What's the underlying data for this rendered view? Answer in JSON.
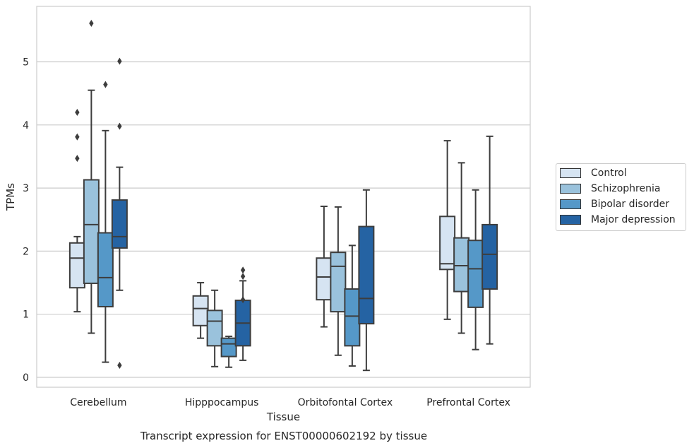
{
  "chart_data": {
    "type": "box",
    "title": "Transcript expression for ENST00000602192 by tissue",
    "xlabel": "Tissue",
    "ylabel": "TPMs",
    "ylim": [
      -0.15,
      5.85
    ],
    "yticks": [
      0,
      1,
      2,
      3,
      4,
      5
    ],
    "grid": "horizontal",
    "legend_position": "right",
    "categories": [
      "Cerebellum",
      "Hipppocampus",
      "Orbitofontal Cortex",
      "Prefrontal Cortex"
    ],
    "series": [
      {
        "name": "Control",
        "color": "#d6e4f2",
        "boxes": [
          {
            "whislo": 1.04,
            "q1": 1.42,
            "med": 1.89,
            "q3": 2.13,
            "whishi": 2.23,
            "fliers": [
              3.47,
              3.81,
              4.2
            ]
          },
          {
            "whislo": 0.62,
            "q1": 0.82,
            "med": 1.09,
            "q3": 1.29,
            "whishi": 1.5,
            "fliers": []
          },
          {
            "whislo": 0.8,
            "q1": 1.23,
            "med": 1.59,
            "q3": 1.89,
            "whishi": 2.71,
            "fliers": []
          },
          {
            "whislo": 0.92,
            "q1": 1.71,
            "med": 1.8,
            "q3": 2.55,
            "whishi": 3.75,
            "fliers": []
          }
        ]
      },
      {
        "name": "Schizophrenia",
        "color": "#9ac2dc",
        "boxes": [
          {
            "whislo": 0.7,
            "q1": 1.49,
            "med": 2.42,
            "q3": 3.13,
            "whishi": 4.55,
            "fliers": [
              5.61
            ]
          },
          {
            "whislo": 0.17,
            "q1": 0.5,
            "med": 0.89,
            "q3": 1.06,
            "whishi": 1.38,
            "fliers": []
          },
          {
            "whislo": 0.35,
            "q1": 1.04,
            "med": 1.76,
            "q3": 1.98,
            "whishi": 2.7,
            "fliers": []
          },
          {
            "whislo": 0.7,
            "q1": 1.36,
            "med": 1.77,
            "q3": 2.21,
            "whishi": 3.4,
            "fliers": []
          }
        ]
      },
      {
        "name": "Bipolar disorder",
        "color": "#5598c8",
        "boxes": [
          {
            "whislo": 0.24,
            "q1": 1.12,
            "med": 1.58,
            "q3": 2.29,
            "whishi": 3.91,
            "fliers": [
              4.64
            ]
          },
          {
            "whislo": 0.16,
            "q1": 0.33,
            "med": 0.53,
            "q3": 0.62,
            "whishi": 0.65,
            "fliers": []
          },
          {
            "whislo": 0.18,
            "q1": 0.5,
            "med": 0.97,
            "q3": 1.4,
            "whishi": 2.09,
            "fliers": []
          },
          {
            "whislo": 0.44,
            "q1": 1.11,
            "med": 1.72,
            "q3": 2.17,
            "whishi": 2.97,
            "fliers": []
          }
        ]
      },
      {
        "name": "Major depression",
        "color": "#2563a3",
        "boxes": [
          {
            "whislo": 1.38,
            "q1": 2.05,
            "med": 2.23,
            "q3": 2.81,
            "whishi": 3.33,
            "fliers": [
              0.19,
              3.98,
              5.01
            ]
          },
          {
            "whislo": 0.27,
            "q1": 0.5,
            "med": 0.86,
            "q3": 1.22,
            "whishi": 1.53,
            "fliers": [
              1.23,
              1.6,
              1.7
            ]
          },
          {
            "whislo": 0.11,
            "q1": 0.85,
            "med": 1.25,
            "q3": 2.39,
            "whishi": 2.97,
            "fliers": []
          },
          {
            "whislo": 0.53,
            "q1": 1.4,
            "med": 1.95,
            "q3": 2.42,
            "whishi": 3.82,
            "fliers": []
          }
        ]
      }
    ]
  }
}
